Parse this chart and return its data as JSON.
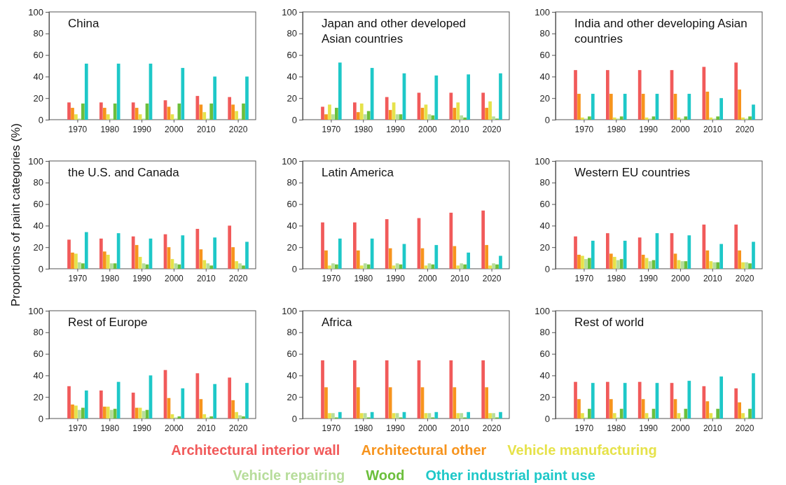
{
  "chart_data": [
    {
      "type": "bar",
      "title": "China",
      "categories": [
        "1970",
        "1980",
        "1990",
        "2000",
        "2010",
        "2020"
      ],
      "ylim": [
        0,
        100
      ],
      "yticks": [
        0,
        20,
        40,
        60,
        80,
        100
      ],
      "series": [
        {
          "color": "#f15a5a",
          "values": [
            16,
            16,
            16,
            18,
            22,
            21
          ]
        },
        {
          "color": "#f7941d",
          "values": [
            11,
            11,
            11,
            12,
            14,
            14
          ]
        },
        {
          "color": "#e6e24a",
          "values": [
            5,
            5,
            5,
            5,
            7,
            8
          ]
        },
        {
          "color": "#b7dd9b",
          "values": [
            1,
            1,
            1,
            1,
            1,
            1
          ]
        },
        {
          "color": "#6cbf3c",
          "values": [
            15,
            15,
            15,
            15,
            15,
            15
          ]
        },
        {
          "color": "#1ec8c8",
          "values": [
            52,
            52,
            52,
            48,
            40,
            40
          ]
        }
      ]
    },
    {
      "type": "bar",
      "title": "Japan and other developed Asian countries",
      "categories": [
        "1970",
        "1980",
        "1990",
        "2000",
        "2010",
        "2020"
      ],
      "ylim": [
        0,
        100
      ],
      "yticks": [
        0,
        20,
        40,
        60,
        80,
        100
      ],
      "series": [
        {
          "color": "#f15a5a",
          "values": [
            12,
            16,
            21,
            25,
            25,
            25
          ]
        },
        {
          "color": "#f7941d",
          "values": [
            5,
            7,
            9,
            11,
            11,
            11
          ]
        },
        {
          "color": "#e6e24a",
          "values": [
            14,
            15,
            16,
            14,
            16,
            17
          ]
        },
        {
          "color": "#b7dd9b",
          "values": [
            5,
            5,
            5,
            5,
            4,
            3
          ]
        },
        {
          "color": "#6cbf3c",
          "values": [
            11,
            8,
            5,
            4,
            2,
            1
          ]
        },
        {
          "color": "#1ec8c8",
          "values": [
            53,
            48,
            43,
            41,
            42,
            43
          ]
        }
      ]
    },
    {
      "type": "bar",
      "title": "India and other developing Asian countries",
      "categories": [
        "1970",
        "1980",
        "1990",
        "2000",
        "2010",
        "2020"
      ],
      "ylim": [
        0,
        100
      ],
      "yticks": [
        0,
        20,
        40,
        60,
        80,
        100
      ],
      "series": [
        {
          "color": "#f15a5a",
          "values": [
            46,
            46,
            46,
            46,
            49,
            53
          ]
        },
        {
          "color": "#f7941d",
          "values": [
            24,
            24,
            24,
            24,
            26,
            28
          ]
        },
        {
          "color": "#e6e24a",
          "values": [
            2,
            2,
            2,
            2,
            2,
            2
          ]
        },
        {
          "color": "#b7dd9b",
          "values": [
            1,
            1,
            1,
            1,
            1,
            1
          ]
        },
        {
          "color": "#6cbf3c",
          "values": [
            3,
            3,
            3,
            3,
            3,
            3
          ]
        },
        {
          "color": "#1ec8c8",
          "values": [
            24,
            24,
            24,
            24,
            20,
            14
          ]
        }
      ]
    },
    {
      "type": "bar",
      "title": "the U.S. and Canada",
      "ylabel": "Proportions of paint categories (%)",
      "categories": [
        "1970",
        "1980",
        "1990",
        "2000",
        "2010",
        "2020"
      ],
      "ylim": [
        0,
        100
      ],
      "yticks": [
        0,
        20,
        40,
        60,
        80,
        100
      ],
      "series": [
        {
          "color": "#f15a5a",
          "values": [
            27,
            28,
            30,
            32,
            37,
            40
          ]
        },
        {
          "color": "#f7941d",
          "values": [
            15,
            16,
            22,
            20,
            18,
            20
          ]
        },
        {
          "color": "#e6e24a",
          "values": [
            14,
            13,
            11,
            9,
            8,
            7
          ]
        },
        {
          "color": "#b7dd9b",
          "values": [
            6,
            5,
            5,
            5,
            5,
            5
          ]
        },
        {
          "color": "#6cbf3c",
          "values": [
            5,
            5,
            4,
            4,
            3,
            3
          ]
        },
        {
          "color": "#1ec8c8",
          "values": [
            34,
            33,
            28,
            31,
            29,
            25
          ]
        }
      ]
    },
    {
      "type": "bar",
      "title": "Latin America",
      "categories": [
        "1970",
        "1980",
        "1990",
        "2000",
        "2010",
        "2020"
      ],
      "ylim": [
        0,
        100
      ],
      "yticks": [
        0,
        20,
        40,
        60,
        80,
        100
      ],
      "series": [
        {
          "color": "#f15a5a",
          "values": [
            43,
            43,
            46,
            47,
            52,
            54
          ]
        },
        {
          "color": "#f7941d",
          "values": [
            17,
            17,
            19,
            19,
            21,
            22
          ]
        },
        {
          "color": "#e6e24a",
          "values": [
            3,
            3,
            3,
            3,
            3,
            3
          ]
        },
        {
          "color": "#b7dd9b",
          "values": [
            5,
            5,
            5,
            5,
            5,
            5
          ]
        },
        {
          "color": "#6cbf3c",
          "values": [
            4,
            4,
            4,
            4,
            4,
            4
          ]
        },
        {
          "color": "#1ec8c8",
          "values": [
            28,
            28,
            23,
            22,
            15,
            12
          ]
        }
      ]
    },
    {
      "type": "bar",
      "title": "Western EU countries",
      "categories": [
        "1970",
        "1980",
        "1990",
        "2000",
        "2010",
        "2020"
      ],
      "ylim": [
        0,
        100
      ],
      "yticks": [
        0,
        20,
        40,
        60,
        80,
        100
      ],
      "series": [
        {
          "color": "#f15a5a",
          "values": [
            30,
            33,
            29,
            33,
            41,
            41
          ]
        },
        {
          "color": "#f7941d",
          "values": [
            13,
            14,
            13,
            14,
            17,
            17
          ]
        },
        {
          "color": "#e6e24a",
          "values": [
            12,
            11,
            10,
            8,
            7,
            6
          ]
        },
        {
          "color": "#b7dd9b",
          "values": [
            9,
            8,
            7,
            7,
            6,
            6
          ]
        },
        {
          "color": "#6cbf3c",
          "values": [
            10,
            9,
            8,
            7,
            6,
            5
          ]
        },
        {
          "color": "#1ec8c8",
          "values": [
            26,
            26,
            33,
            31,
            23,
            25
          ]
        }
      ]
    },
    {
      "type": "bar",
      "title": "Rest of Europe",
      "categories": [
        "1970",
        "1980",
        "1990",
        "2000",
        "2010",
        "2020"
      ],
      "ylim": [
        0,
        100
      ],
      "yticks": [
        0,
        20,
        40,
        60,
        80,
        100
      ],
      "series": [
        {
          "color": "#f15a5a",
          "values": [
            30,
            26,
            24,
            45,
            42,
            38
          ]
        },
        {
          "color": "#f7941d",
          "values": [
            13,
            11,
            10,
            19,
            18,
            17
          ]
        },
        {
          "color": "#e6e24a",
          "values": [
            12,
            11,
            10,
            4,
            4,
            6
          ]
        },
        {
          "color": "#b7dd9b",
          "values": [
            8,
            8,
            7,
            1,
            1,
            3
          ]
        },
        {
          "color": "#6cbf3c",
          "values": [
            10,
            9,
            8,
            2,
            2,
            2
          ]
        },
        {
          "color": "#1ec8c8",
          "values": [
            26,
            34,
            40,
            28,
            32,
            33
          ]
        }
      ]
    },
    {
      "type": "bar",
      "title": "Africa",
      "categories": [
        "1970",
        "1980",
        "1990",
        "2000",
        "2010",
        "2020"
      ],
      "ylim": [
        0,
        100
      ],
      "yticks": [
        0,
        20,
        40,
        60,
        80,
        100
      ],
      "series": [
        {
          "color": "#f15a5a",
          "values": [
            54,
            54,
            54,
            54,
            54,
            54
          ]
        },
        {
          "color": "#f7941d",
          "values": [
            29,
            29,
            29,
            29,
            29,
            29
          ]
        },
        {
          "color": "#e6e24a",
          "values": [
            5,
            5,
            5,
            5,
            5,
            5
          ]
        },
        {
          "color": "#b7dd9b",
          "values": [
            5,
            5,
            5,
            5,
            5,
            5
          ]
        },
        {
          "color": "#6cbf3c",
          "values": [
            1,
            1,
            1,
            1,
            1,
            1
          ]
        },
        {
          "color": "#1ec8c8",
          "values": [
            6,
            6,
            6,
            6,
            6,
            6
          ]
        }
      ]
    },
    {
      "type": "bar",
      "title": "Rest of world",
      "categories": [
        "1970",
        "1980",
        "1990",
        "2000",
        "2010",
        "2020"
      ],
      "ylim": [
        0,
        100
      ],
      "yticks": [
        0,
        20,
        40,
        60,
        80,
        100
      ],
      "series": [
        {
          "name": "Architectural interior wall",
          "color": "#f15a5a",
          "values": [
            34,
            34,
            34,
            33,
            30,
            28
          ]
        },
        {
          "name": "Architectural other",
          "color": "#f7941d",
          "values": [
            18,
            18,
            18,
            18,
            16,
            15
          ]
        },
        {
          "name": "Vehicle manufacturing",
          "color": "#e6e24a",
          "values": [
            5,
            5,
            5,
            5,
            5,
            5
          ]
        },
        {
          "name": "Vehicle repairing",
          "color": "#b7dd9b",
          "values": [
            1,
            1,
            1,
            1,
            1,
            1
          ]
        },
        {
          "name": "Wood",
          "color": "#6cbf3c",
          "values": [
            9,
            9,
            9,
            9,
            9,
            9
          ]
        },
        {
          "name": "Other industrial paint use",
          "color": "#1ec8c8",
          "values": [
            33,
            33,
            33,
            35,
            39,
            42
          ]
        }
      ]
    }
  ]
}
